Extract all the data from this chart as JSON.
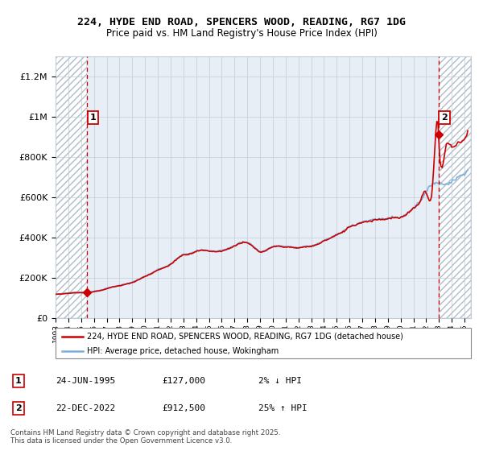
{
  "title_line1": "224, HYDE END ROAD, SPENCERS WOOD, READING, RG7 1DG",
  "title_line2": "Price paid vs. HM Land Registry's House Price Index (HPI)",
  "ylabel_ticks": [
    "£0",
    "£200K",
    "£400K",
    "£600K",
    "£800K",
    "£1M",
    "£1.2M"
  ],
  "ytick_values": [
    0,
    200000,
    400000,
    600000,
    800000,
    1000000,
    1200000
  ],
  "ylim": [
    0,
    1300000
  ],
  "xlim_start": 1993.0,
  "xlim_end": 2025.5,
  "sale1_date": 1995.48,
  "sale1_price": 127000,
  "sale1_label": "1",
  "sale2_date": 2022.98,
  "sale2_price": 912500,
  "sale2_label": "2",
  "hpi_color": "#7aaddb",
  "price_color": "#cc0000",
  "sale_marker_color": "#cc0000",
  "annotation_box_color": "#cc0000",
  "background_hatch_color": "#b0bcc8",
  "grid_color": "#c0ccd8",
  "legend_label_price": "224, HYDE END ROAD, SPENCERS WOOD, READING, RG7 1DG (detached house)",
  "legend_label_hpi": "HPI: Average price, detached house, Wokingham",
  "footer_line1": "Contains HM Land Registry data © Crown copyright and database right 2025.",
  "footer_line2": "This data is licensed under the Open Government Licence v3.0.",
  "table_row1": [
    "1",
    "24-JUN-1995",
    "£127,000",
    "2% ↓ HPI"
  ],
  "table_row2": [
    "2",
    "22-DEC-2022",
    "£912,500",
    "25% ↑ HPI"
  ]
}
